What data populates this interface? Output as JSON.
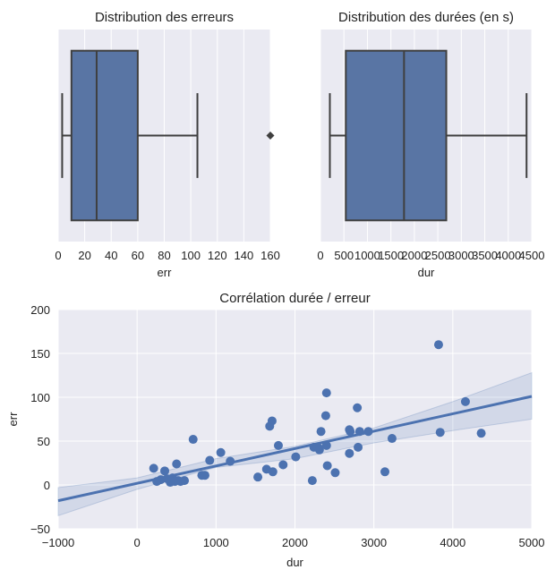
{
  "colors": {
    "background": "#eaeaf2",
    "grid": "#ffffff",
    "box_fill": "#5975a4",
    "box_line": "#3f3f3f",
    "series": "#4c72b0",
    "band": "#4c72b0"
  },
  "chart_data": [
    {
      "type": "box",
      "title": "Distribution des erreurs",
      "xlabel": "err",
      "ylabel": "",
      "xlim": [
        0,
        160
      ],
      "ticks": [
        0,
        20,
        40,
        60,
        80,
        100,
        120,
        140,
        160
      ],
      "tick_labels": [
        "0",
        "20",
        "40",
        "60",
        "80",
        "100",
        "120",
        "140",
        "160"
      ],
      "whisker_low": 3,
      "q1": 10,
      "median": 29,
      "q3": 60,
      "whisker_high": 105,
      "outliers": [
        160
      ],
      "grid": true
    },
    {
      "type": "box",
      "title": "Distribution des durées (en s)",
      "xlabel": "dur",
      "ylabel": "",
      "xlim": [
        0,
        4500
      ],
      "ticks": [
        0,
        500,
        1000,
        1500,
        2000,
        2500,
        3000,
        3500,
        4000,
        4500
      ],
      "tick_labels": [
        "0",
        "500",
        "1000",
        "1500",
        "2000",
        "2500",
        "3000",
        "3500",
        "4000",
        "4500"
      ],
      "whisker_low": 200,
      "q1": 540,
      "median": 1780,
      "q3": 2680,
      "whisker_high": 4390,
      "outliers": [],
      "grid": true
    },
    {
      "type": "scatter",
      "title": "Corrélation durée / erreur",
      "xlabel": "dur",
      "ylabel": "err",
      "xlim": [
        -1000,
        5000
      ],
      "ylim": [
        -50,
        200
      ],
      "xticks": [
        -1000,
        0,
        1000,
        2000,
        3000,
        4000,
        5000
      ],
      "xtick_labels": [
        "−1000",
        "0",
        "1000",
        "2000",
        "3000",
        "4000",
        "5000"
      ],
      "yticks": [
        -50,
        0,
        50,
        100,
        150,
        200
      ],
      "ytick_labels": [
        "−50",
        "0",
        "50",
        "100",
        "150",
        "200"
      ],
      "points": [
        [
          210,
          19
        ],
        [
          250,
          4
        ],
        [
          300,
          6
        ],
        [
          350,
          16
        ],
        [
          380,
          7
        ],
        [
          420,
          3
        ],
        [
          450,
          8
        ],
        [
          480,
          4
        ],
        [
          500,
          24
        ],
        [
          520,
          5
        ],
        [
          550,
          4
        ],
        [
          600,
          5
        ],
        [
          710,
          52
        ],
        [
          820,
          11
        ],
        [
          860,
          11
        ],
        [
          920,
          28
        ],
        [
          1060,
          37
        ],
        [
          1180,
          27
        ],
        [
          1530,
          9
        ],
        [
          1640,
          18
        ],
        [
          1680,
          67
        ],
        [
          1710,
          73
        ],
        [
          1720,
          15
        ],
        [
          1790,
          45
        ],
        [
          1850,
          23
        ],
        [
          2010,
          32
        ],
        [
          2220,
          5
        ],
        [
          2240,
          43
        ],
        [
          2300,
          42
        ],
        [
          2310,
          40
        ],
        [
          2330,
          61
        ],
        [
          2390,
          79
        ],
        [
          2400,
          105
        ],
        [
          2400,
          45
        ],
        [
          2410,
          22
        ],
        [
          2510,
          14
        ],
        [
          2690,
          36
        ],
        [
          2690,
          63
        ],
        [
          2700,
          61
        ],
        [
          2790,
          88
        ],
        [
          2800,
          43
        ],
        [
          2820,
          61
        ],
        [
          2930,
          61
        ],
        [
          3140,
          15
        ],
        [
          3230,
          53
        ],
        [
          3820,
          160
        ],
        [
          3840,
          60
        ],
        [
          4160,
          95
        ],
        [
          4360,
          59
        ]
      ],
      "regression": {
        "x": [
          -1000,
          5000
        ],
        "y": [
          -18,
          101
        ]
      },
      "ci_band": {
        "x": [
          -1000,
          0,
          1000,
          2000,
          3000,
          4000,
          5000
        ],
        "lower": [
          -35,
          -5,
          20,
          30,
          48,
          62,
          75
        ],
        "upper": [
          -3,
          8,
          30,
          44,
          65,
          95,
          128
        ]
      },
      "grid": true
    }
  ]
}
